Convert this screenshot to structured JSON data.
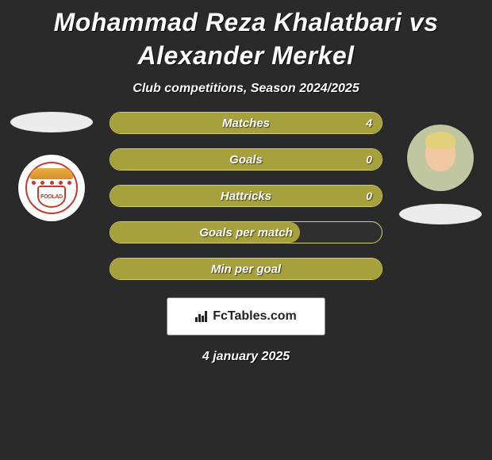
{
  "title": "Mohammad Reza Khalatbari vs Alexander Merkel",
  "subtitle": "Club competitions, Season 2024/2025",
  "date": "4 january 2025",
  "brand": "FcTables.com",
  "colors": {
    "background": "#2a2a2a",
    "bar_fill": "#a7a13d",
    "bar_border": "#d6d06a",
    "text": "#ffffff",
    "pill": "#ececec",
    "brand_box_bg": "#ffffff",
    "brand_text": "#222222"
  },
  "players": {
    "left": {
      "name": "Mohammad Reza Khalatbari",
      "crest_text": "FOOLAD"
    },
    "right": {
      "name": "Alexander Merkel"
    }
  },
  "stats": [
    {
      "label": "Matches",
      "value": "4",
      "fill_pct": 100
    },
    {
      "label": "Goals",
      "value": "0",
      "fill_pct": 100
    },
    {
      "label": "Hattricks",
      "value": "0",
      "fill_pct": 100
    },
    {
      "label": "Goals per match",
      "value": "",
      "fill_pct": 70
    },
    {
      "label": "Min per goal",
      "value": "",
      "fill_pct": 100
    }
  ],
  "typography": {
    "title_fontsize": 32,
    "subtitle_fontsize": 16,
    "stat_label_fontsize": 15,
    "date_fontsize": 16
  }
}
